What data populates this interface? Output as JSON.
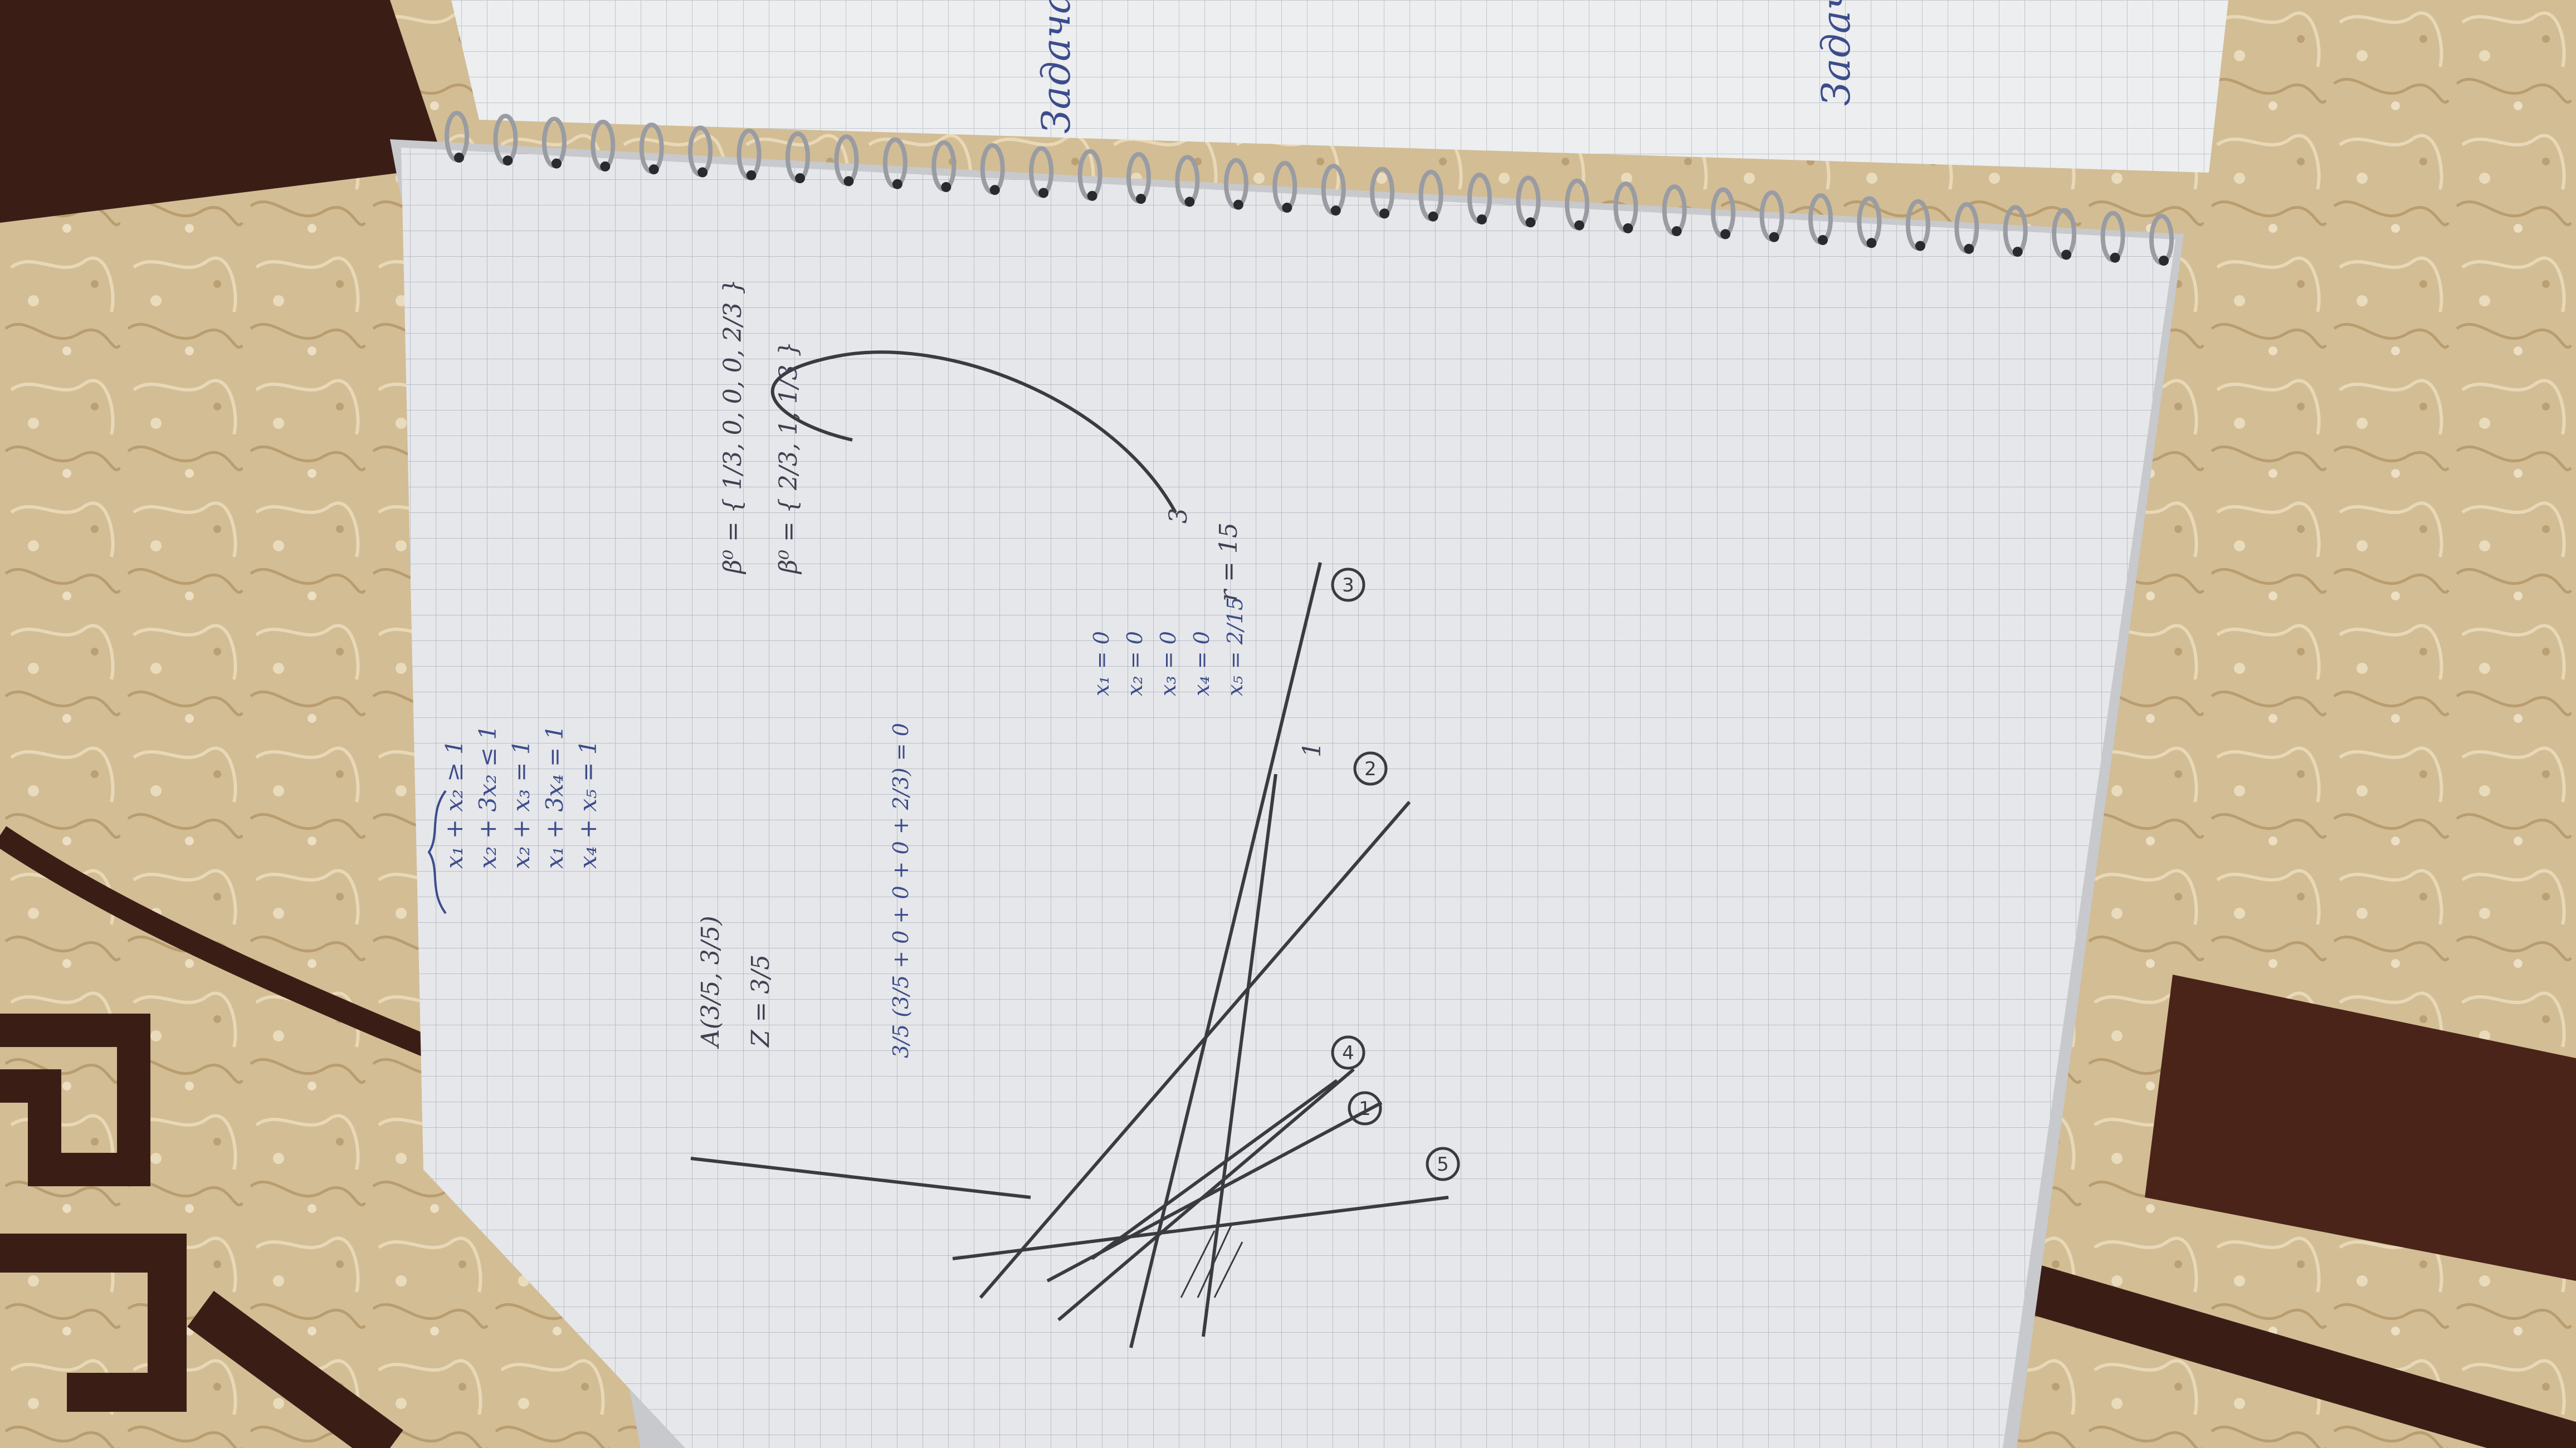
{
  "image": {
    "kind": "photo",
    "subject": "spiral notebook with handwritten linear-programming notes on a patterned bedspread"
  },
  "colors": {
    "fabric_light": "#d2bd95",
    "fabric_dark": "#3a1e16",
    "paper": "#e6e7ea",
    "grid": "#b9bec7",
    "pencil": "#3b3b3f",
    "ink_blue": "#3c4c8c",
    "spiral": "#9a9ca3"
  },
  "notes": {
    "top_page_word_1": "Задача",
    "top_page_word_2": "Задача",
    "beta_top": "β⁰ = { 1/3, 0, 0, 0, 2/3 }",
    "beta_bottom": "β⁰ = { 2/3, 1, 1/3 }",
    "r_label": "r = 15",
    "three_label": "3",
    "a_matrix": "A(3/5, 3/5)",
    "z_eq": "Z = 3/5",
    "sys_1": "x₁ + x₂ ≥ 1",
    "sys_2": "x₂ + 3x₂ ≤ 1",
    "sys_3": "x₂ + x₃ = 1",
    "sys_4": "x₁ + 3x₄ = 1",
    "sys_5": "x₄ + x₅ = 1",
    "calc_1": "3/5 (3/5 + 0 + 0 + 0 + 2/3) = 0",
    "calc_2": "x₁ = 0",
    "calc_3": "x₂ = 0",
    "calc_4": "x₃ = 0",
    "calc_5": "x₄ = 0",
    "calc_6": "x₅ = 2/15",
    "circled": [
      "1",
      "2",
      "3",
      "4",
      "5"
    ],
    "axis_mark_1": "1"
  }
}
